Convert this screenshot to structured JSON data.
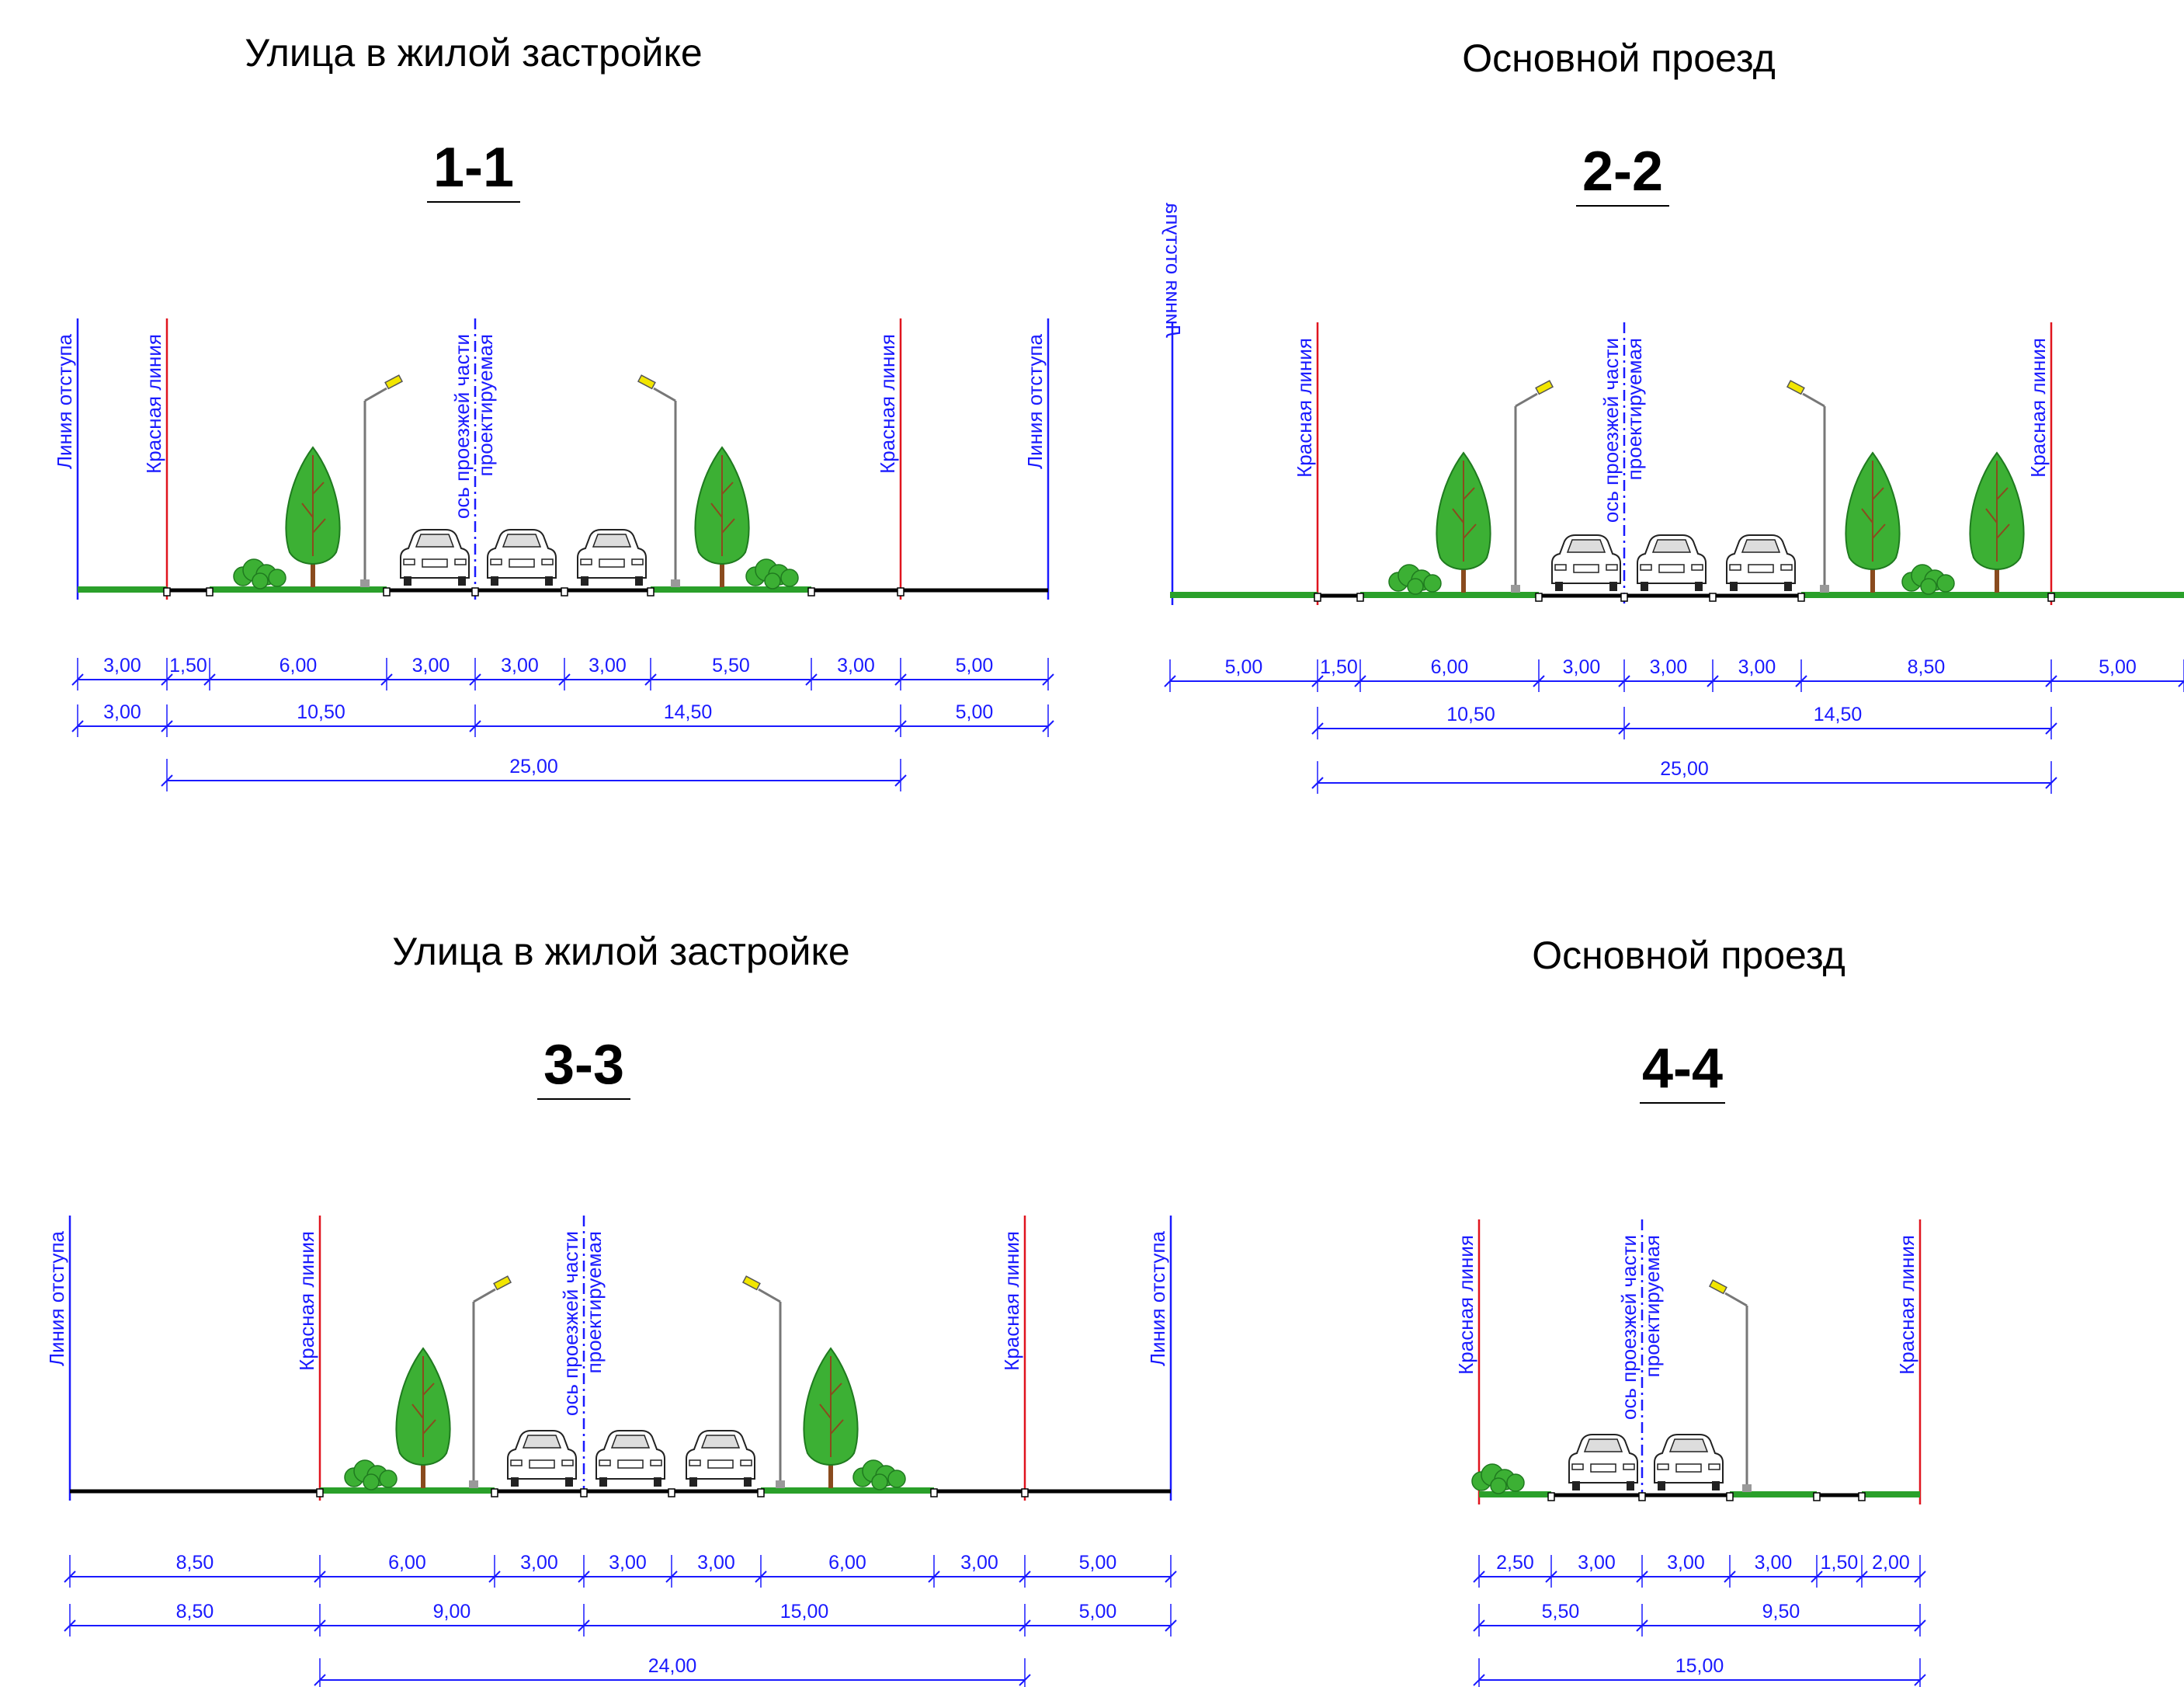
{
  "panels": [
    {
      "id": "1-1",
      "heading": "Улица в жилой застройке",
      "section": "1-1",
      "markers": [
        {
          "label": "Линия отступа",
          "kind": "setback"
        },
        {
          "label": "Красная линия",
          "kind": "red"
        },
        {
          "label": "ось проезжей части проектируемая",
          "kind": "axis"
        },
        {
          "label": "Красная линия",
          "kind": "red"
        },
        {
          "label": "Линия отступа",
          "kind": "setback"
        }
      ],
      "dims_row1": [
        "3,00",
        "1,50",
        "6,00",
        "3,00",
        "3,00",
        "3,00",
        "5,50",
        "3,00",
        "5,00"
      ],
      "dims_row2": [
        "3,00",
        "10,50",
        "14,50",
        "5,00"
      ],
      "dims_row3": [
        "25,00"
      ],
      "colors": {
        "red_line": "#e0141e",
        "setback_line": "#1a1aff",
        "grass": "#2aa02a",
        "tree": "#3cb034"
      }
    },
    {
      "id": "2-2",
      "heading": "Основной проезд",
      "section": "2-2",
      "markers": [
        {
          "label": "Линия отступа",
          "kind": "setback"
        },
        {
          "label": "Красная линия",
          "kind": "red"
        },
        {
          "label": "ось проезжей части проектируемая",
          "kind": "axis"
        },
        {
          "label": "Красная линия",
          "kind": "red"
        }
      ],
      "dims_row1": [
        "5,00",
        "1,50",
        "6,00",
        "3,00",
        "3,00",
        "3,00",
        "8,50",
        "5,00"
      ],
      "dims_row2": [
        "10,50",
        "14,50"
      ],
      "dims_row3": [
        "25,00"
      ],
      "colors": {
        "red_line": "#e0141e",
        "setback_line": "#1a1aff",
        "grass": "#2aa02a",
        "tree": "#3cb034"
      }
    },
    {
      "id": "3-3",
      "heading": "Улица в жилой застройке",
      "section": "3-3",
      "markers": [
        {
          "label": "Линия отступа",
          "kind": "setback"
        },
        {
          "label": "Красная линия",
          "kind": "red"
        },
        {
          "label": "ось проезжей части проектируемая",
          "kind": "axis"
        },
        {
          "label": "Красная линия",
          "kind": "red"
        },
        {
          "label": "Линия отступа",
          "kind": "setback"
        }
      ],
      "dims_row1": [
        "8,50",
        "6,00",
        "3,00",
        "3,00",
        "3,00",
        "6,00",
        "3,00",
        "5,00"
      ],
      "dims_row2": [
        "8,50",
        "9,00",
        "15,00",
        "5,00"
      ],
      "dims_row3": [
        "24,00"
      ],
      "colors": {
        "red_line": "#e0141e",
        "setback_line": "#1a1aff",
        "grass": "#2aa02a",
        "tree": "#3cb034"
      }
    },
    {
      "id": "4-4",
      "heading": "Основной проезд",
      "section": "4-4",
      "markers": [
        {
          "label": "Красная линия",
          "kind": "red"
        },
        {
          "label": "ось проезжей части проектируемая",
          "kind": "axis"
        },
        {
          "label": "Красная линия",
          "kind": "red"
        }
      ],
      "dims_row1": [
        "2,50",
        "3,00",
        "3,00",
        "3,00",
        "1,50",
        "2,00"
      ],
      "dims_row2": [
        "5,50",
        "9,50"
      ],
      "dims_row3": [
        "15,00"
      ],
      "colors": {
        "red_line": "#e0141e",
        "setback_line": "#1a1aff",
        "grass": "#2aa02a",
        "tree": "#3cb034"
      }
    }
  ]
}
